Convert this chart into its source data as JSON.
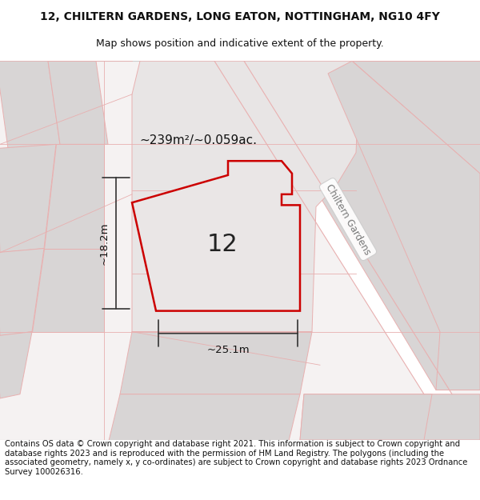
{
  "title_line1": "12, CHILTERN GARDENS, LONG EATON, NOTTINGHAM, NG10 4FY",
  "title_line2": "Map shows position and indicative extent of the property.",
  "footer_text": "Contains OS data © Crown copyright and database right 2021. This information is subject to Crown copyright and database rights 2023 and is reproduced with the permission of HM Land Registry. The polygons (including the associated geometry, namely x, y co-ordinates) are subject to Crown copyright and database rights 2023 Ordnance Survey 100026316.",
  "area_label": "~239m²/~0.059ac.",
  "number_label": "12",
  "dim_width": "~25.1m",
  "dim_height": "~18.2m",
  "street_label": "Chiltern Gardens",
  "bg_color": "#f7f5f5",
  "road_color": "#ffffff",
  "plot_fill": "#e8e4e4",
  "plot_outline": "#cc0000",
  "plot_lw": 1.8,
  "pink_line": "#e8b0b0",
  "gray_block": "#d8d5d5",
  "light_gray": "#e8e5e5",
  "title_fontsize": 10,
  "subtitle_fontsize": 9,
  "footer_fontsize": 7.2
}
